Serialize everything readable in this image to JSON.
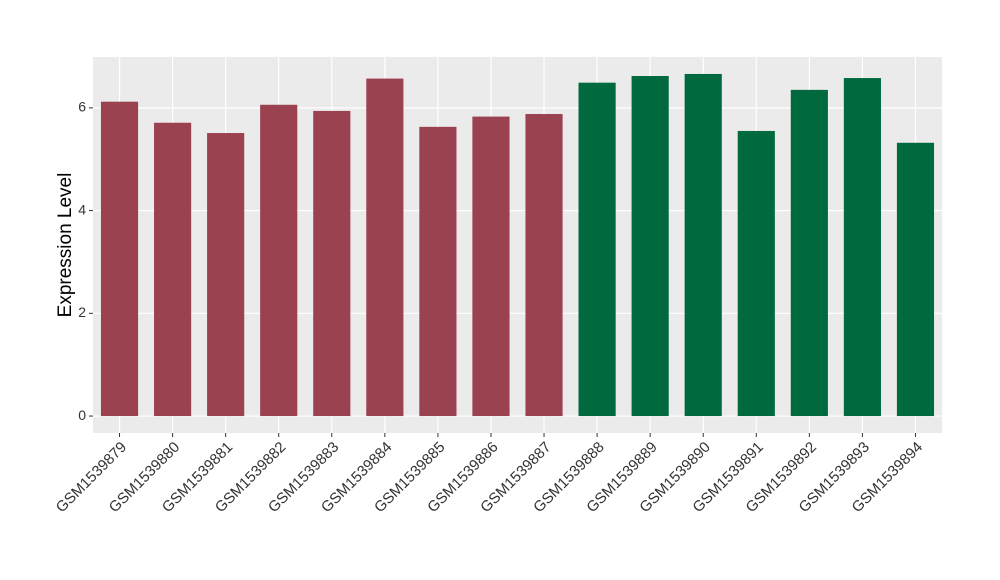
{
  "chart_data": {
    "type": "bar",
    "y_label": "Expression Level",
    "categories": [
      "GSM1539879",
      "GSM1539880",
      "GSM1539881",
      "GSM1539882",
      "GSM1539883",
      "GSM1539884",
      "GSM1539885",
      "GSM1539886",
      "GSM1539887",
      "GSM1539888",
      "GSM1539889",
      "GSM1539890",
      "GSM1539891",
      "GSM1539892",
      "GSM1539893",
      "GSM1539894"
    ],
    "values": [
      6.12,
      5.71,
      5.51,
      6.06,
      5.94,
      6.57,
      5.63,
      5.83,
      5.88,
      6.49,
      6.62,
      6.66,
      5.55,
      6.35,
      6.58,
      5.32
    ],
    "colors": [
      "#9b4250",
      "#9b4250",
      "#9b4250",
      "#9b4250",
      "#9b4250",
      "#9b4250",
      "#9b4250",
      "#9b4250",
      "#9b4250",
      "#00693e",
      "#00693e",
      "#00693e",
      "#00693e",
      "#00693e",
      "#00693e",
      "#00693e"
    ],
    "ylim": [
      -0.33,
      6.99
    ],
    "yticks": [
      0,
      2,
      4,
      6
    ],
    "grid": true
  }
}
